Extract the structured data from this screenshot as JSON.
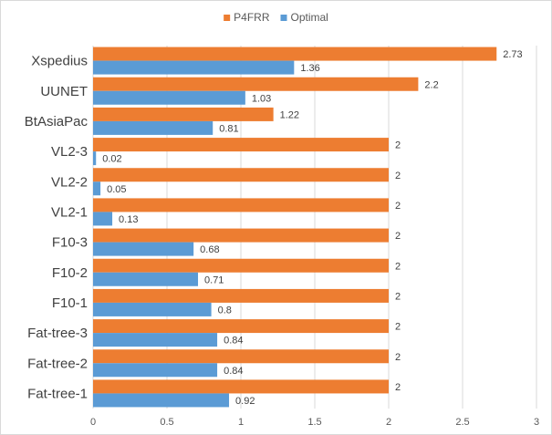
{
  "chart_data": {
    "type": "bar",
    "orientation": "horizontal",
    "categories": [
      "Xspedius",
      "UUNET",
      "BtAsiaPac",
      "VL2-3",
      "VL2-2",
      "VL2-1",
      "F10-3",
      "F10-2",
      "F10-1",
      "Fat-tree-3",
      "Fat-tree-2",
      "Fat-tree-1"
    ],
    "series": [
      {
        "name": "P4FRR",
        "color": "#ed7d31",
        "values": [
          2.73,
          2.2,
          1.22,
          2,
          2,
          2,
          2,
          2,
          2,
          2,
          2,
          2
        ],
        "labels": [
          "2.73",
          "2.2",
          "1.22",
          "2",
          "2",
          "2",
          "2",
          "2",
          "2",
          "2",
          "2",
          "2"
        ]
      },
      {
        "name": "Optimal",
        "color": "#5b9bd5",
        "values": [
          1.36,
          1.03,
          0.81,
          0.02,
          0.05,
          0.13,
          0.68,
          0.71,
          0.8,
          0.84,
          0.84,
          0.92
        ],
        "labels": [
          "1.36",
          "1.03",
          "0.81",
          "0.02",
          "0.05",
          "0.13",
          "0.68",
          "0.71",
          "0.8",
          "0.84",
          "0.84",
          "0.92"
        ]
      }
    ],
    "xlim": [
      0,
      3
    ],
    "xticks": [
      0,
      0.5,
      1,
      1.5,
      2,
      2.5,
      3
    ],
    "xtick_labels": [
      "0",
      "0.5",
      "1",
      "1.5",
      "2",
      "2.5",
      "3"
    ],
    "grid": "vertical",
    "gridColor": "#d9d9d9",
    "legend_position": "top",
    "title": "",
    "xlabel": "",
    "ylabel": ""
  }
}
